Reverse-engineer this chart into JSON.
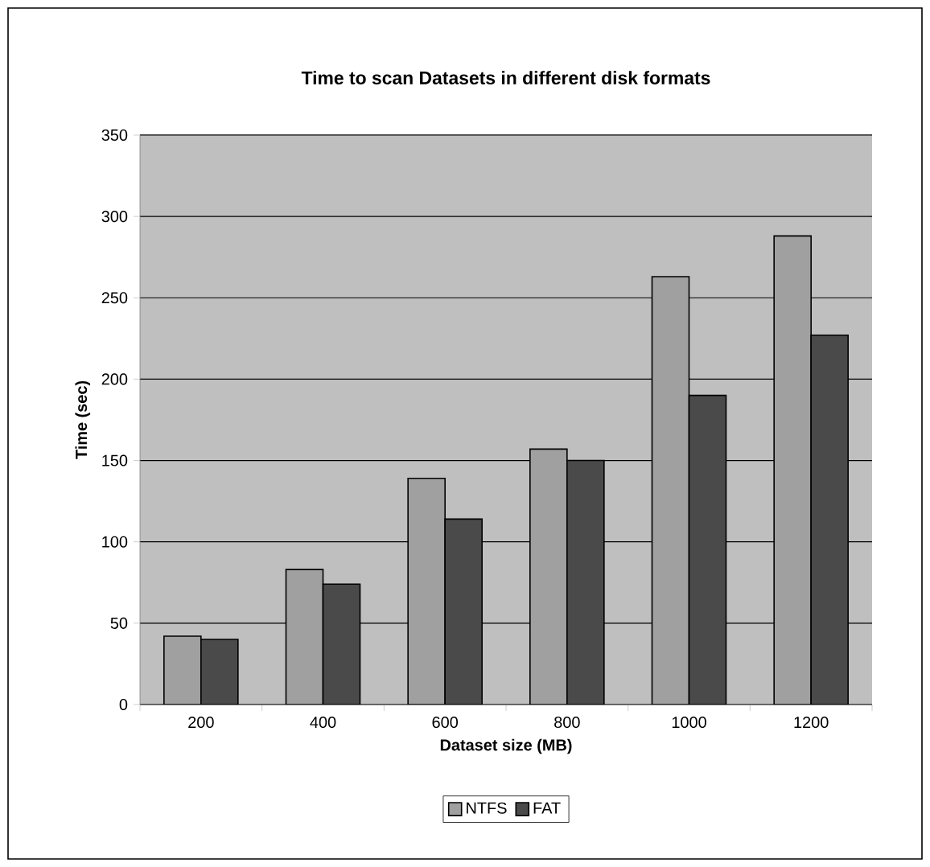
{
  "chart_data": {
    "type": "bar",
    "title": "Time to scan Datasets in different disk formats",
    "xlabel": "Dataset size (MB)",
    "ylabel": "Time (sec)",
    "categories": [
      "200",
      "400",
      "600",
      "800",
      "1000",
      "1200"
    ],
    "series": [
      {
        "name": "NTFS",
        "color": "#a0a0a0",
        "values": [
          42,
          83,
          139,
          157,
          263,
          288
        ]
      },
      {
        "name": "FAT",
        "color": "#4a4a4a",
        "values": [
          40,
          74,
          114,
          150,
          190,
          227
        ]
      }
    ],
    "ylim": [
      0,
      350
    ],
    "yticks": [
      0,
      50,
      100,
      150,
      200,
      250,
      300,
      350
    ],
    "grid": "y",
    "legend": "bottom"
  }
}
